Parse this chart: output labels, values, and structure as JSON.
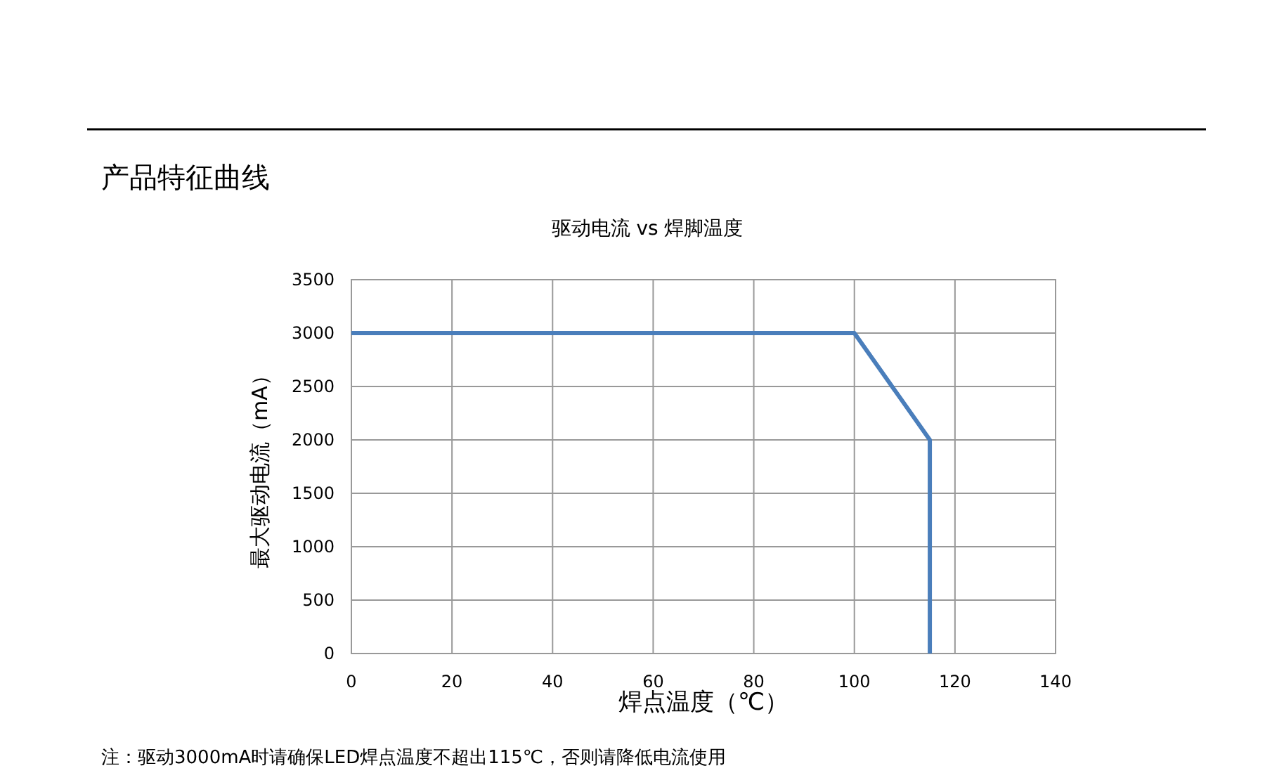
{
  "chart_data": {
    "type": "line",
    "title": "驱动电流 vs 焊脚温度",
    "xlabel": "焊点温度（℃）",
    "ylabel": "最大驱动电流（mA）",
    "annotations": [
      "产品特征曲线",
      "注：驱动3000mA时请确保LED焊点温度不超出115℃，否则请降低电流使用"
    ],
    "series": [
      {
        "color": "#4a7ebb",
        "x": [
          0,
          100,
          115,
          115
        ],
        "values": [
          3000,
          3000,
          2000,
          0
        ]
      }
    ],
    "xlim": [
      0,
      140
    ],
    "xticks": [
      0,
      20,
      40,
      60,
      80,
      100,
      120,
      140
    ],
    "ylim": [
      0,
      3500
    ],
    "yticks": [
      0,
      500,
      1000,
      1500,
      2000,
      2500,
      3000,
      3500
    ],
    "grid": true,
    "marker": "none",
    "line_style": "solid"
  }
}
